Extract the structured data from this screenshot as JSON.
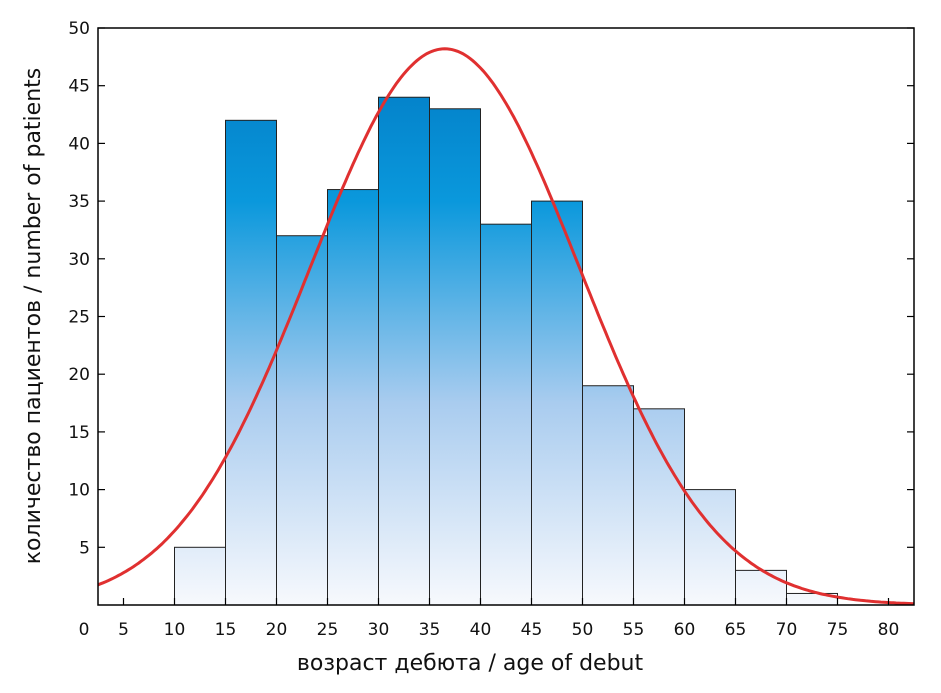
{
  "chart_data": {
    "type": "bar",
    "subtype": "histogram-with-normal-curve",
    "title": "",
    "xlabel": "возраст дебюта / age of debut",
    "ylabel": "количество пациентов / number of patients",
    "xlim": [
      2.5,
      82.5
    ],
    "ylim": [
      0,
      50
    ],
    "xticks": [
      0,
      5,
      10,
      15,
      20,
      25,
      30,
      35,
      40,
      45,
      50,
      55,
      60,
      65,
      70,
      75,
      80
    ],
    "yticks": [
      5,
      10,
      15,
      20,
      25,
      30,
      35,
      40,
      45,
      50
    ],
    "grid": false,
    "bins": [
      {
        "from": 10,
        "to": 15,
        "value": 5
      },
      {
        "from": 15,
        "to": 20,
        "value": 42
      },
      {
        "from": 20,
        "to": 25,
        "value": 32
      },
      {
        "from": 25,
        "to": 30,
        "value": 36
      },
      {
        "from": 30,
        "to": 35,
        "value": 44
      },
      {
        "from": 35,
        "to": 40,
        "value": 43
      },
      {
        "from": 40,
        "to": 45,
        "value": 33
      },
      {
        "from": 45,
        "to": 50,
        "value": 35
      },
      {
        "from": 50,
        "to": 55,
        "value": 19
      },
      {
        "from": 55,
        "to": 60,
        "value": 17
      },
      {
        "from": 60,
        "to": 65,
        "value": 10
      },
      {
        "from": 65,
        "to": 70,
        "value": 3
      },
      {
        "from": 70,
        "to": 75,
        "value": 1
      }
    ],
    "normal_curve": {
      "mean": 36.5,
      "sd": 13.2,
      "peak": 48.2,
      "color": "#e03030"
    },
    "bar_gradient": {
      "top": "#0076c0",
      "upper": "#0a98dc",
      "middle": "#a9ccef",
      "bottom": "#f7f9fd"
    }
  }
}
